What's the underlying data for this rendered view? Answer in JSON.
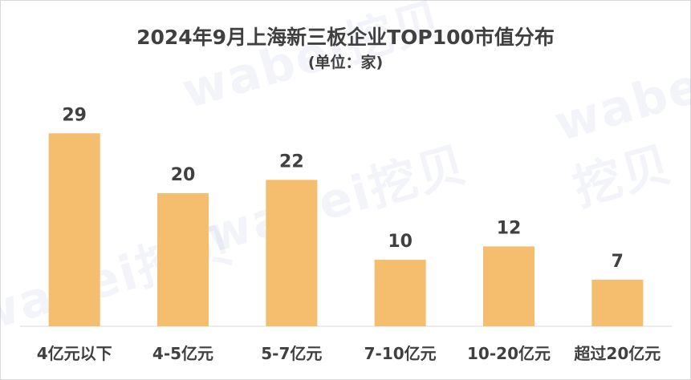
{
  "chart_data": {
    "type": "bar",
    "title": "2024年9月上海新三板企业TOP100市值分布",
    "subtitle": "(单位：家)",
    "categories": [
      "4亿元以下",
      "4-5亿元",
      "5-7亿元",
      "7-10亿元",
      "10-20亿元",
      "超过20亿元"
    ],
    "values": [
      29,
      20,
      22,
      10,
      12,
      7
    ],
    "ylim": [
      0,
      30
    ],
    "grid": false,
    "bar_color": "#F5BD6E"
  },
  "watermark_text": "wabei挖贝"
}
